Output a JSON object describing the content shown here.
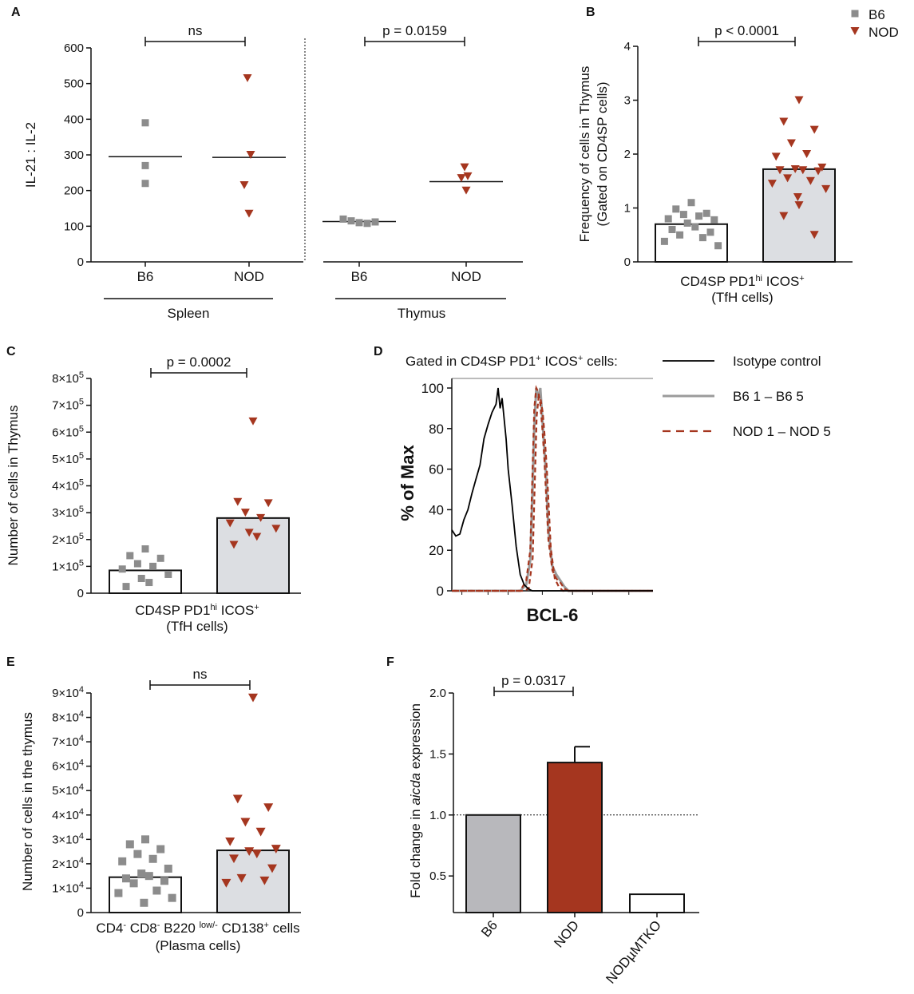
{
  "colors": {
    "b6": "#8c8c8c",
    "nod": "#a5361f",
    "bar_gray": "#dcdee2",
    "bar_red": "#a5361f",
    "bar_gray_f": "#b8b8bc"
  },
  "legend": {
    "b6": "B6",
    "nod": "NOD"
  },
  "chart_data": [
    {
      "id": "A",
      "type": "scatter",
      "ylabel": "IL-21 : IL-2",
      "ylim": [
        0,
        600
      ],
      "yticks": [
        "0",
        "100",
        "200",
        "300",
        "400",
        "500",
        "600"
      ],
      "groups": [
        {
          "label": "B6",
          "tissue": "Spleen",
          "marker": "square",
          "values": [
            390,
            270,
            220
          ],
          "median": 295
        },
        {
          "label": "NOD",
          "tissue": "Spleen",
          "marker": "triangle",
          "values": [
            515,
            300,
            215,
            135
          ],
          "median": 293
        },
        {
          "label": "B6",
          "tissue": "Thymus",
          "marker": "square",
          "values": [
            120,
            115,
            110,
            108,
            112
          ],
          "median": 113
        },
        {
          "label": "NOD",
          "tissue": "Thymus",
          "marker": "triangle",
          "values": [
            265,
            240,
            235,
            200
          ],
          "median": 225
        }
      ],
      "tissue_labels": [
        "Spleen",
        "Thymus"
      ],
      "comparisons": [
        "ns",
        "p = 0.0159"
      ]
    },
    {
      "id": "B",
      "type": "bar",
      "ylabel_line1": "Frequency of cells in Thymus",
      "ylabel_line2": "(Gated on CD4SP cells)",
      "ylim": [
        0,
        4
      ],
      "yticks": [
        "0",
        "1",
        "2",
        "3",
        "4"
      ],
      "series": [
        {
          "name": "B6",
          "marker": "square",
          "mean": 0.7,
          "values": [
            1.1,
            0.98,
            0.9,
            0.88,
            0.85,
            0.8,
            0.78,
            0.72,
            0.65,
            0.6,
            0.55,
            0.5,
            0.45,
            0.38,
            0.3
          ]
        },
        {
          "name": "NOD",
          "marker": "triangle",
          "mean": 1.72,
          "values": [
            3.0,
            2.6,
            2.45,
            2.2,
            2.0,
            1.95,
            1.75,
            1.72,
            1.7,
            1.7,
            1.68,
            1.55,
            1.5,
            1.45,
            1.35,
            1.2,
            1.05,
            0.85,
            0.5
          ]
        }
      ],
      "xlabel_line1": "CD4SP PD1",
      "xlabel_sup1": "hi",
      "xlabel_mid": " ICOS",
      "xlabel_sup2": "+",
      "xlabel_line2": "(TfH cells)",
      "comparison": "p < 0.0001"
    },
    {
      "id": "C",
      "type": "bar",
      "ylabel": "Number of cells in Thymus",
      "ylim": [
        0,
        800000
      ],
      "yticks": [
        "0",
        "1×10",
        "2×10",
        "3×10",
        "4×10",
        "5×10",
        "6×10",
        "7×10",
        "8×10"
      ],
      "ytick_exp": "5",
      "series": [
        {
          "name": "B6",
          "marker": "square",
          "mean": 85000,
          "values": [
            165000,
            140000,
            130000,
            110000,
            100000,
            90000,
            70000,
            55000,
            40000,
            25000
          ]
        },
        {
          "name": "NOD",
          "marker": "triangle",
          "mean": 280000,
          "values": [
            640000,
            340000,
            335000,
            300000,
            280000,
            260000,
            240000,
            225000,
            210000,
            180000
          ]
        }
      ],
      "xlabel_line1": "CD4SP PD1",
      "xlabel_sup1": "hi",
      "xlabel_mid": " ICOS",
      "xlabel_sup2": "+",
      "xlabel_line2": "(TfH cells)",
      "comparison": "p = 0.0002"
    },
    {
      "id": "D",
      "type": "line",
      "title": "Gated in CD4SP PD1",
      "title_sup1": "+",
      "title_mid": " ICOS",
      "title_sup2": "+",
      "title_end": " cells:",
      "ylabel": "% of Max",
      "xlabel": "BCL-6",
      "ylim": [
        0,
        100
      ],
      "yticks": [
        "0",
        "20",
        "40",
        "60",
        "80",
        "100"
      ],
      "xlim": [
        0,
        100
      ],
      "series": [
        {
          "name": "Isotype control",
          "style": "solid-black",
          "x": [
            0,
            2,
            4,
            6,
            8,
            10,
            12,
            14,
            16,
            18,
            20,
            22,
            23,
            24,
            25,
            26,
            27,
            28,
            30,
            32,
            34,
            36,
            38,
            40,
            45,
            100
          ],
          "y": [
            30,
            27,
            28,
            35,
            40,
            48,
            55,
            62,
            75,
            82,
            88,
            92,
            100,
            90,
            95,
            85,
            75,
            60,
            42,
            22,
            8,
            3,
            1,
            0,
            0,
            0
          ]
        },
        {
          "name": "B6 1 – B6 5",
          "style": "solid-gray",
          "x": [
            0,
            34,
            37,
            39,
            40,
            41,
            42,
            43,
            44,
            45,
            46,
            47,
            48,
            50,
            52,
            54,
            56,
            58,
            62,
            100
          ],
          "y": [
            0,
            0,
            3,
            15,
            45,
            80,
            100,
            95,
            100,
            85,
            70,
            55,
            30,
            12,
            8,
            5,
            2,
            0,
            0,
            0
          ]
        },
        {
          "name": "NOD 1 – NOD 5",
          "style": "dashed-red",
          "x": [
            0,
            34,
            37,
            39,
            40,
            41,
            42,
            43,
            44,
            45,
            46,
            47,
            48,
            50,
            52,
            54,
            56,
            58,
            62,
            100
          ],
          "y": [
            0,
            0,
            5,
            20,
            55,
            90,
            100,
            98,
            92,
            80,
            65,
            45,
            25,
            10,
            6,
            4,
            1,
            0,
            0,
            0
          ]
        }
      ]
    },
    {
      "id": "E",
      "type": "bar",
      "ylabel": "Number of cells in the thymus",
      "ylim": [
        0,
        90000
      ],
      "yticks": [
        "0",
        "1×10",
        "2×10",
        "3×10",
        "4×10",
        "5×10",
        "6×10",
        "7×10",
        "8×10",
        "9×10"
      ],
      "ytick_exp": "4",
      "series": [
        {
          "name": "B6",
          "marker": "square",
          "mean": 14500,
          "values": [
            30000,
            28000,
            26000,
            24000,
            22000,
            21000,
            18000,
            16000,
            15000,
            14000,
            13000,
            12000,
            9000,
            8000,
            6000,
            4000
          ]
        },
        {
          "name": "NOD",
          "marker": "triangle",
          "mean": 25500,
          "values": [
            88000,
            46500,
            43000,
            37000,
            33000,
            29000,
            26000,
            25000,
            24000,
            22000,
            18000,
            14000,
            13000,
            12000
          ]
        }
      ],
      "xlabel_line1a": "CD4",
      "xlabel_line1b": "CD8",
      "xlabel_line1c": "B220",
      "xlabel_line1d": "CD138",
      "xlabel_sup_minus": "-",
      "xlabel_sup_low": "low/-",
      "xlabel_sup_plus": "+",
      "xlabel_end": " cells",
      "xlabel_line2": "(Plasma cells)",
      "comparison": "ns"
    },
    {
      "id": "F",
      "type": "bar",
      "ylabel_pre": "Fold change in ",
      "ylabel_it": "aicda",
      "ylabel_post": " expression",
      "ylim": [
        0.2,
        2.0
      ],
      "yticks": [
        "0.5",
        "1.0",
        "1.5",
        "2.0"
      ],
      "categories": [
        "B6",
        "NOD",
        "NODµMTKO"
      ],
      "values": [
        1.0,
        1.43,
        0.35
      ],
      "errors": [
        0,
        0.13,
        0
      ],
      "reference_line": 1.0,
      "comparison": "p = 0.0317"
    }
  ]
}
